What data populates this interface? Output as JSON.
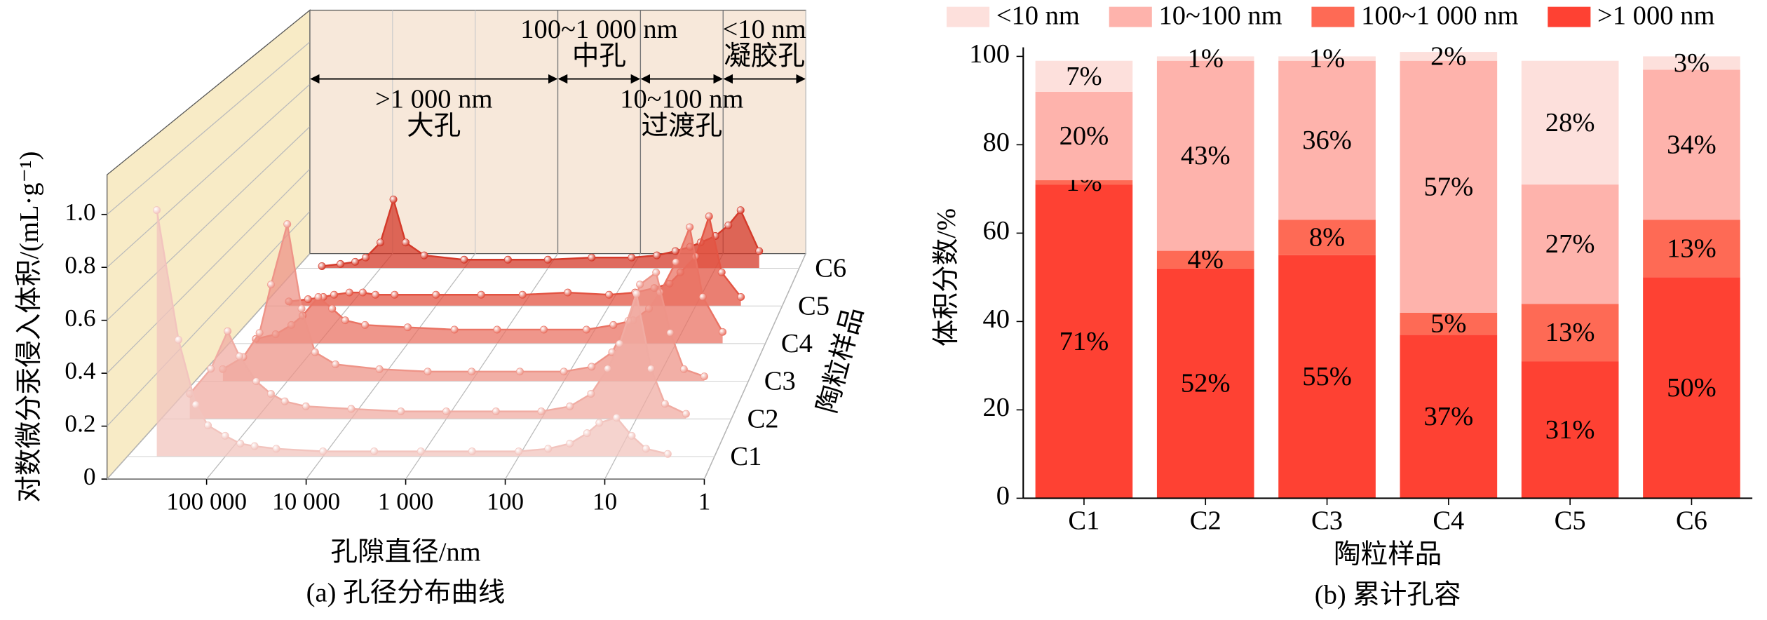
{
  "chart_data": [
    {
      "type": "waterfall",
      "caption": "(a) 孔径分布曲线",
      "x_label": "孔隙直径/nm",
      "y_label": "对数微分汞侵入体积/(mL·g⁻¹)",
      "z_label": "陶粒样品",
      "log_x": true,
      "xlim": [
        1000000,
        1
      ],
      "xticks": [
        {
          "value": 100000,
          "label": "100 000"
        },
        {
          "value": 10000,
          "label": "10 000"
        },
        {
          "value": 1000,
          "label": "1 000"
        },
        100,
        10,
        1
      ],
      "ylim": [
        0,
        1.15
      ],
      "yticks": [
        0,
        0.2,
        0.4,
        0.6,
        0.8,
        {
          "value": 1,
          "label": "1.0"
        }
      ],
      "grid": true,
      "regions": [
        {
          "label": ">1 000 nm",
          "name": "大孔",
          "from": 1000000,
          "to": 1000
        },
        {
          "label": "100~1 000 nm",
          "name": "中孔",
          "from": 1000,
          "to": 100
        },
        {
          "label": "10~100 nm",
          "name": "过渡孔",
          "from": 100,
          "to": 10
        },
        {
          "label": "<10 nm",
          "name": "凝胶孔",
          "from": 10,
          "to": 1
        }
      ],
      "x": [
        500000,
        300000,
        200000,
        150000,
        100000,
        70000,
        50000,
        30000,
        10000,
        3000,
        1000,
        300,
        100,
        50,
        30,
        20,
        15,
        10,
        7,
        5,
        3
      ],
      "series": [
        {
          "name": "C1",
          "color": "#f2c4be",
          "values": [
            0.95,
            0.45,
            0.2,
            0.12,
            0.08,
            0.05,
            0.04,
            0.03,
            0.02,
            0.02,
            0.02,
            0.02,
            0.02,
            0.03,
            0.05,
            0.09,
            0.13,
            0.15,
            0.08,
            0.03,
            0.01
          ]
        },
        {
          "name": "C2",
          "color": "#f0aca3",
          "values": [
            0.1,
            0.2,
            0.35,
            0.25,
            0.15,
            0.1,
            0.07,
            0.05,
            0.04,
            0.03,
            0.03,
            0.03,
            0.03,
            0.05,
            0.1,
            0.2,
            0.3,
            0.5,
            0.2,
            0.06,
            0.02
          ]
        },
        {
          "name": "C3",
          "color": "#ee9488",
          "values": [
            0.05,
            0.1,
            0.2,
            0.4,
            0.65,
            0.3,
            0.12,
            0.07,
            0.05,
            0.04,
            0.04,
            0.04,
            0.04,
            0.06,
            0.12,
            0.25,
            0.4,
            0.45,
            0.2,
            0.05,
            0.02
          ]
        },
        {
          "name": "C4",
          "color": "#ea7364",
          "values": [
            0.02,
            0.04,
            0.08,
            0.12,
            0.2,
            0.15,
            0.1,
            0.08,
            0.07,
            0.06,
            0.06,
            0.06,
            0.06,
            0.08,
            0.1,
            0.15,
            0.22,
            0.35,
            0.5,
            0.2,
            0.05
          ]
        },
        {
          "name": "C5",
          "color": "#e35443",
          "values": [
            0.02,
            0.03,
            0.04,
            0.05,
            0.06,
            0.06,
            0.05,
            0.05,
            0.05,
            0.05,
            0.05,
            0.06,
            0.05,
            0.06,
            0.08,
            0.1,
            0.15,
            0.22,
            0.4,
            0.15,
            0.04
          ]
        },
        {
          "name": "C6",
          "color": "#d43a2a",
          "values": [
            0.01,
            0.02,
            0.03,
            0.05,
            0.12,
            0.32,
            0.12,
            0.06,
            0.04,
            0.04,
            0.04,
            0.05,
            0.05,
            0.06,
            0.08,
            0.1,
            0.12,
            0.15,
            0.2,
            0.27,
            0.08
          ]
        }
      ]
    },
    {
      "type": "stacked_bar",
      "caption": "(b) 累计孔容",
      "x_label": "陶粒样品",
      "y_label": "体积分数/%",
      "legend": "top",
      "categories": [
        "C1",
        "C2",
        "C3",
        "C4",
        "C5",
        "C6"
      ],
      "ylim": [
        0,
        100
      ],
      "yticks": [
        0,
        20,
        40,
        60,
        80,
        100
      ],
      "series": [
        {
          "name": ">1 000 nm",
          "color": "#fe4133",
          "values": [
            71,
            52,
            55,
            37,
            31,
            50
          ],
          "value_labels": [
            "71%",
            "52%",
            "55%",
            "37%",
            "31%",
            "50%"
          ]
        },
        {
          "name": "100~1 000 nm",
          "color": "#fe6a55",
          "values": [
            1,
            4,
            8,
            5,
            13,
            13
          ],
          "value_labels": [
            "1%",
            "4%",
            "8%",
            "5%",
            "13%",
            "13%"
          ]
        },
        {
          "name": "10~100 nm",
          "color": "#feb3ac",
          "values": [
            20,
            43,
            36,
            57,
            27,
            34
          ],
          "value_labels": [
            "20%",
            "43%",
            "36%",
            "57%",
            "27%",
            "34%"
          ]
        },
        {
          "name": "<10 nm",
          "color": "#fde0dc",
          "values": [
            7,
            1,
            1,
            2,
            28,
            3
          ],
          "value_labels": [
            "7%",
            "1%",
            "1%",
            "2%",
            "28%",
            "3%"
          ]
        }
      ]
    }
  ]
}
